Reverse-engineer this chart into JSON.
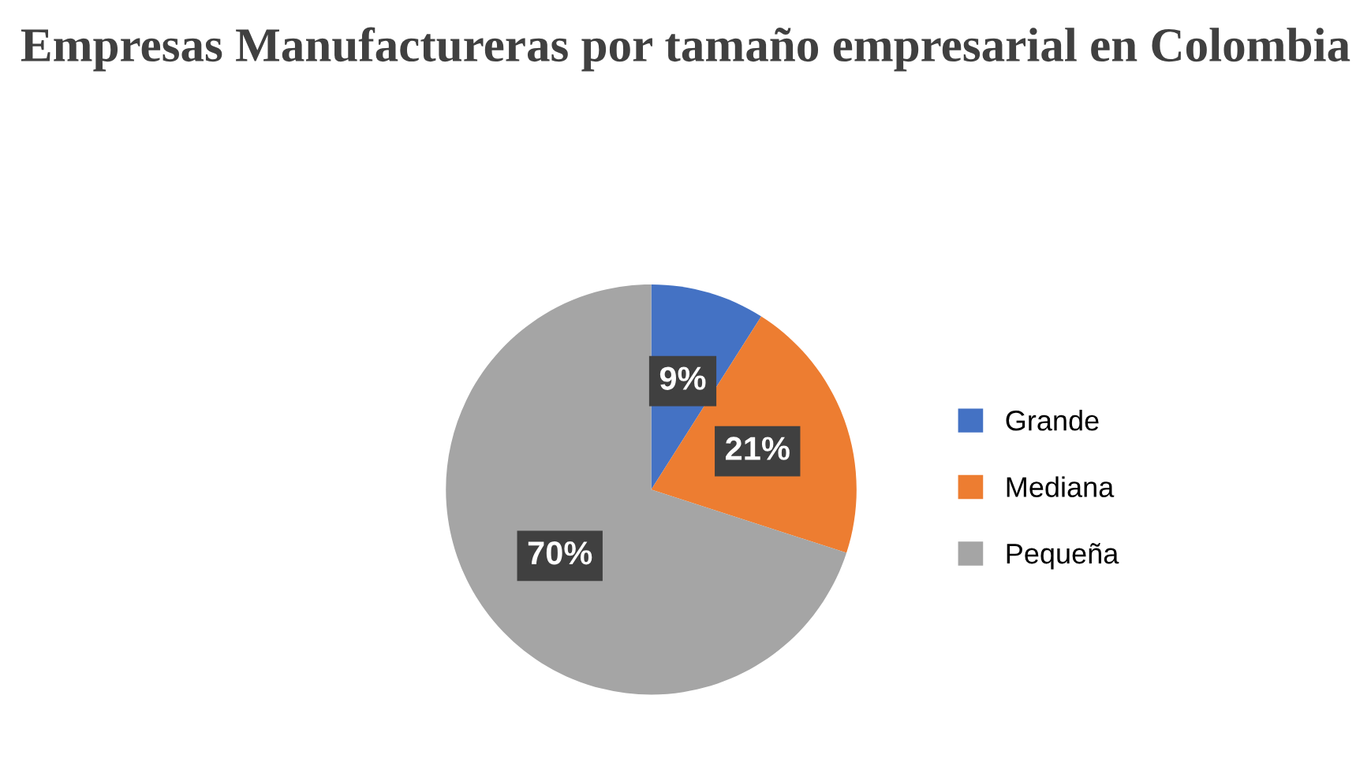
{
  "chart_data": {
    "type": "pie",
    "title": "Empresas Manufactureras por tamaño empresarial en Colombia",
    "categories": [
      "Grande",
      "Mediana",
      "Pequeña"
    ],
    "values": [
      9,
      21,
      70
    ],
    "colors": [
      "#4472c4",
      "#ed7d31",
      "#a5a5a5"
    ],
    "value_labels": [
      "9%",
      "21%",
      "70%"
    ],
    "legend": "right"
  }
}
